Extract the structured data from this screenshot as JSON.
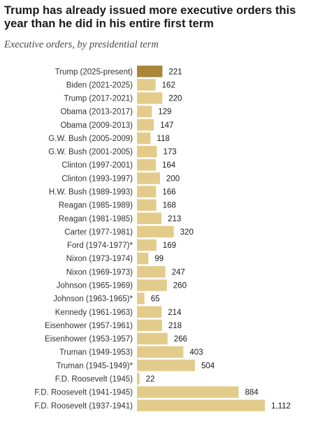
{
  "title": "Trump has already issued more executive orders this year than he did in his entire first term",
  "subtitle": "Executive orders, by presidential term",
  "colors": {
    "highlight": "#a8863a",
    "bar": "#e3cc8b",
    "text": "#1a1a1a"
  },
  "chart_data": {
    "type": "bar",
    "orientation": "horizontal",
    "title": "Trump has already issued more executive orders this year than he did in his entire first term",
    "subtitle": "Executive orders, by presidential term",
    "categories": [
      "Trump (2025-present)",
      "Biden (2021-2025)",
      "Trump (2017-2021)",
      "Obama (2013-2017)",
      "Obama (2009-2013)",
      "G.W. Bush (2005-2009)",
      "G.W. Bush (2001-2005)",
      "Clinton (1997-2001)",
      "Clinton (1993-1997)",
      "H.W. Bush (1989-1993)",
      "Reagan (1985-1989)",
      "Reagan (1981-1985)",
      "Carter (1977-1981)",
      "Ford (1974-1977)*",
      "Nixon (1973-1974)",
      "Nixon (1969-1973)",
      "Johnson (1965-1969)",
      "Johnson (1963-1965)*",
      "Kennedy (1961-1963)",
      "Eisenhower (1957-1961)",
      "Eisenhower (1953-1957)",
      "Truman (1949-1953)",
      "Truman (1945-1949)*",
      "F.D. Roosevelt (1945)",
      "F.D. Roosevelt (1941-1945)",
      "F.D. Roosevelt (1937-1941)"
    ],
    "values": [
      221,
      162,
      220,
      129,
      147,
      118,
      173,
      164,
      200,
      166,
      168,
      213,
      320,
      169,
      99,
      247,
      260,
      65,
      214,
      218,
      266,
      403,
      504,
      22,
      884,
      1112
    ],
    "value_labels": [
      "221",
      "162",
      "220",
      "129",
      "147",
      "118",
      "173",
      "164",
      "200",
      "166",
      "168",
      "213",
      "320",
      "169",
      "99",
      "247",
      "260",
      "65",
      "214",
      "218",
      "266",
      "403",
      "504",
      "22",
      "884",
      "1,112"
    ],
    "highlight_index": 0,
    "xlim": [
      0,
      1112
    ],
    "grid": false,
    "xlabel": "",
    "ylabel": ""
  }
}
